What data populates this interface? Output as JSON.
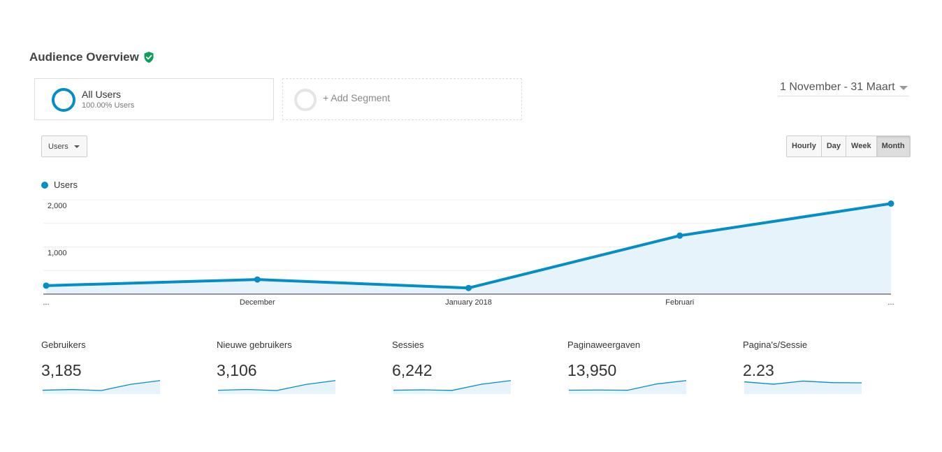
{
  "header": {
    "title": "Audience Overview",
    "verified_icon": "shield-check-icon",
    "verified_color": "#0f9d58"
  },
  "segments": {
    "all_users": {
      "name": "All Users",
      "subtitle": "100.00% Users"
    },
    "add_segment": {
      "label": "+ Add Segment"
    }
  },
  "date_range": {
    "label": "1 November - 31 Maart"
  },
  "metric_selector": {
    "selected": "Users"
  },
  "granularity": {
    "options": [
      "Hourly",
      "Day",
      "Week",
      "Month"
    ],
    "active": "Month"
  },
  "colors": {
    "accent": "#058dc7",
    "area_fill": "#e6f3fa"
  },
  "chart_data": {
    "type": "area",
    "series": [
      {
        "name": "Users",
        "values": [
          180,
          310,
          130,
          1240,
          1920
        ]
      }
    ],
    "x_labels": [
      "...",
      "December",
      "January 2018",
      "Februari",
      "..."
    ],
    "y_ticks": [
      {
        "value": 1000,
        "label": "1,000"
      },
      {
        "value": 2000,
        "label": "2,000"
      }
    ],
    "ylim": [
      0,
      2000
    ],
    "grid": true,
    "legend": "top-left"
  },
  "kpis": [
    {
      "label": "Gebruikers",
      "value": "3,185",
      "spark": [
        180,
        310,
        130,
        1240,
        1920
      ]
    },
    {
      "label": "Nieuwe gebruikers",
      "value": "3,106",
      "spark": [
        170,
        305,
        125,
        1200,
        1880
      ]
    },
    {
      "label": "Sessies",
      "value": "6,242",
      "spark": [
        300,
        420,
        250,
        2100,
        3200
      ]
    },
    {
      "label": "Paginaweergaven",
      "value": "13,950",
      "spark": [
        700,
        800,
        650,
        4800,
        7000
      ]
    },
    {
      "label": "Pagina's/Sessie",
      "value": "2.23",
      "spark": [
        2.4,
        1.8,
        2.6,
        2.2,
        2.15
      ]
    }
  ]
}
